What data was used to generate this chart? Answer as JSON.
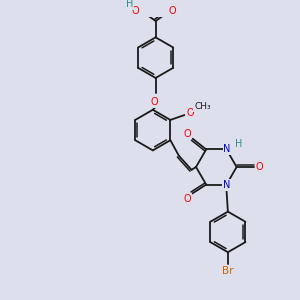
{
  "bg_color": "#dde0ec",
  "bond_color": "#1a1a1a",
  "bond_width": 1.3,
  "atom_colors": {
    "O": "#ff0000",
    "N": "#0000cd",
    "Br": "#cc6600",
    "H": "#2e8b8b",
    "C": "#1a1a1a"
  },
  "font_size": 7.0,
  "ring_r": 0.72
}
